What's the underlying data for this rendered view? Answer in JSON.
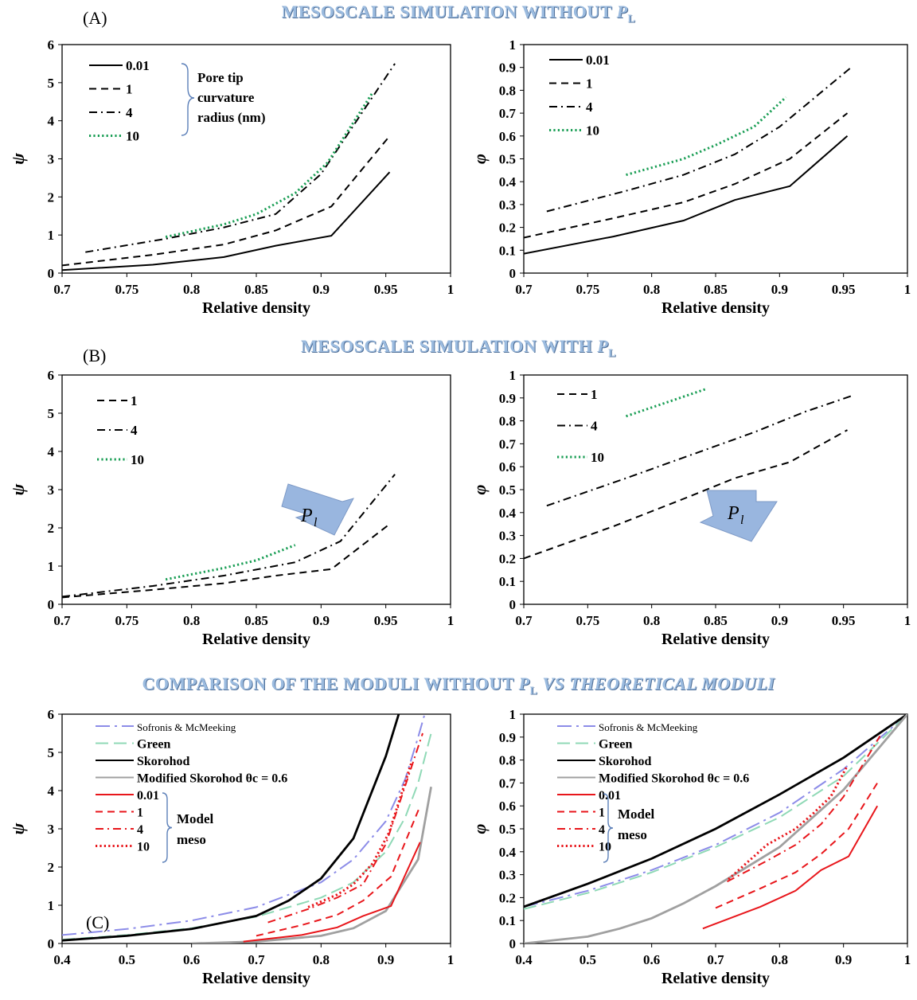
{
  "section_titles": {
    "a": {
      "main": "MESOSCALE  SIMULATION WITHOUT ",
      "p": "P",
      "sub": "L",
      "tail": ""
    },
    "b": {
      "main": "MESOSCALE  SIMULATION WITH ",
      "p": "P",
      "sub": "L",
      "tail": ""
    },
    "c": {
      "main": "COMPARISON OF THE MODULI WITHOUT ",
      "p": "P",
      "sub": "L",
      "tail": " VS THEORETICAL MODULI"
    }
  },
  "panel_labels": {
    "a": "(A)",
    "b": "(B)",
    "c": "(C)"
  },
  "colors": {
    "black": "#000000",
    "green": "#1a9e55",
    "red": "#e8161b",
    "purple": "#8c8ce8",
    "teal": "#8fd9b6",
    "gray": "#a0a0a0",
    "title": "#9bbbdf",
    "arrow": "#7f9fcf"
  },
  "chart_data": [
    {
      "type": "line",
      "panel": "A-left",
      "xlabel": "Relative density",
      "ylabel": "ψ",
      "xlim": [
        0.7,
        1
      ],
      "ylim": [
        0,
        6
      ],
      "xticks": [
        "0.7",
        "0.75",
        "0.8",
        "0.85",
        "0.9",
        "0.95",
        "1"
      ],
      "yticks": [
        "0",
        "1",
        "2",
        "3",
        "4",
        "5",
        "6"
      ],
      "legend_bracket": [
        "Pore tip",
        "curvature",
        "radius (nm)"
      ],
      "series": [
        {
          "name": "0.01",
          "style": "solid",
          "color": "#000000",
          "x": [
            0.7,
            0.77,
            0.825,
            0.865,
            0.908,
            0.953
          ],
          "y": [
            0.08,
            0.22,
            0.42,
            0.72,
            0.98,
            2.65
          ]
        },
        {
          "name": "1",
          "style": "dash",
          "color": "#000000",
          "x": [
            0.7,
            0.77,
            0.825,
            0.865,
            0.908,
            0.953
          ],
          "y": [
            0.2,
            0.48,
            0.75,
            1.12,
            1.75,
            3.6
          ]
        },
        {
          "name": "4",
          "style": "dashdot",
          "color": "#000000",
          "x": [
            0.718,
            0.78,
            0.825,
            0.865,
            0.9,
            0.957
          ],
          "y": [
            0.55,
            0.9,
            1.2,
            1.55,
            2.6,
            5.5
          ]
        },
        {
          "name": "10",
          "style": "dot",
          "color": "#1a9e55",
          "x": [
            0.78,
            0.825,
            0.85,
            0.88,
            0.905,
            0.94
          ],
          "y": [
            0.95,
            1.28,
            1.55,
            2.1,
            2.9,
            4.75
          ]
        }
      ]
    },
    {
      "type": "line",
      "panel": "A-right",
      "xlabel": "Relative density",
      "ylabel": "φ",
      "xlim": [
        0.7,
        1
      ],
      "ylim": [
        0,
        1
      ],
      "xticks": [
        "0.7",
        "0.75",
        "0.8",
        "0.85",
        "0.9",
        "0.95",
        "1"
      ],
      "yticks": [
        "0",
        "0.1",
        "0.2",
        "0.3",
        "0.4",
        "0.5",
        "0.6",
        "0.7",
        "0.8",
        "0.9",
        "1"
      ],
      "series": [
        {
          "name": "0.01",
          "style": "solid",
          "color": "#000000",
          "x": [
            0.7,
            0.77,
            0.825,
            0.865,
            0.908,
            0.953
          ],
          "y": [
            0.085,
            0.16,
            0.23,
            0.32,
            0.38,
            0.6
          ]
        },
        {
          "name": "1",
          "style": "dash",
          "color": "#000000",
          "x": [
            0.7,
            0.77,
            0.825,
            0.865,
            0.908,
            0.953
          ],
          "y": [
            0.155,
            0.24,
            0.31,
            0.39,
            0.5,
            0.7
          ]
        },
        {
          "name": "4",
          "style": "dashdot",
          "color": "#000000",
          "x": [
            0.718,
            0.78,
            0.825,
            0.865,
            0.9,
            0.957
          ],
          "y": [
            0.27,
            0.36,
            0.43,
            0.52,
            0.64,
            0.905
          ]
        },
        {
          "name": "10",
          "style": "dot",
          "color": "#1a9e55",
          "x": [
            0.78,
            0.825,
            0.85,
            0.88,
            0.905
          ],
          "y": [
            0.43,
            0.5,
            0.56,
            0.64,
            0.77
          ]
        }
      ]
    },
    {
      "type": "line",
      "panel": "B-left",
      "xlabel": "Relative density",
      "ylabel": "ψ",
      "xlim": [
        0.7,
        1
      ],
      "ylim": [
        0,
        6
      ],
      "xticks": [
        "0.7",
        "0.75",
        "0.8",
        "0.85",
        "0.9",
        "0.95",
        "1"
      ],
      "yticks": [
        "0",
        "1",
        "2",
        "3",
        "4",
        "5",
        "6"
      ],
      "arrow_label": "P",
      "arrow_sub": "l",
      "series": [
        {
          "name": "1",
          "style": "dash",
          "color": "#000000",
          "x": [
            0.7,
            0.77,
            0.825,
            0.865,
            0.908,
            0.953
          ],
          "y": [
            0.18,
            0.38,
            0.55,
            0.75,
            0.92,
            2.1
          ]
        },
        {
          "name": "4",
          "style": "dashdot",
          "color": "#000000",
          "x": [
            0.7,
            0.77,
            0.825,
            0.88,
            0.915,
            0.957
          ],
          "y": [
            0.2,
            0.48,
            0.75,
            1.1,
            1.65,
            3.4
          ]
        },
        {
          "name": "10",
          "style": "dot",
          "color": "#1a9e55",
          "x": [
            0.78,
            0.825,
            0.85,
            0.88
          ],
          "y": [
            0.65,
            0.95,
            1.15,
            1.55
          ]
        }
      ]
    },
    {
      "type": "line",
      "panel": "B-right",
      "xlabel": "Relative density",
      "ylabel": "φ",
      "xlim": [
        0.7,
        1
      ],
      "ylim": [
        0,
        1
      ],
      "xticks": [
        "0.7",
        "0.75",
        "0.8",
        "0.85",
        "0.9",
        "0.95",
        "1"
      ],
      "yticks": [
        "0",
        "0.1",
        "0.2",
        "0.3",
        "0.4",
        "0.5",
        "0.6",
        "0.7",
        "0.8",
        "0.9",
        "1"
      ],
      "arrow_label": "P",
      "arrow_sub": "l",
      "series": [
        {
          "name": "1",
          "style": "dash",
          "color": "#000000",
          "x": [
            0.7,
            0.77,
            0.825,
            0.865,
            0.908,
            0.953
          ],
          "y": [
            0.2,
            0.34,
            0.46,
            0.55,
            0.62,
            0.76
          ]
        },
        {
          "name": "4",
          "style": "dashdot",
          "color": "#000000",
          "x": [
            0.718,
            0.78,
            0.825,
            0.88,
            0.92,
            0.957
          ],
          "y": [
            0.43,
            0.55,
            0.64,
            0.75,
            0.84,
            0.91
          ]
        },
        {
          "name": "10",
          "style": "dot",
          "color": "#1a9e55",
          "x": [
            0.78,
            0.843
          ],
          "y": [
            0.82,
            0.94
          ]
        }
      ]
    },
    {
      "type": "line",
      "panel": "C-left",
      "xlabel": "Relative density",
      "ylabel": "ψ",
      "xlim": [
        0.4,
        1
      ],
      "ylim": [
        0,
        6
      ],
      "xticks": [
        "0.4",
        "0.5",
        "0.6",
        "0.7",
        "0.8",
        "0.9",
        "1"
      ],
      "yticks": [
        "0",
        "1",
        "2",
        "3",
        "4",
        "5",
        "6"
      ],
      "legend_bracket": [
        "Model",
        "meso"
      ],
      "series": [
        {
          "name": "Sofronis & McMeeking",
          "style": "longdashdot",
          "color": "#8c8ce8",
          "x": [
            0.4,
            0.5,
            0.6,
            0.7,
            0.8,
            0.85,
            0.9,
            0.93,
            0.95,
            0.96
          ],
          "y": [
            0.22,
            0.38,
            0.6,
            0.95,
            1.6,
            2.2,
            3.2,
            4.3,
            5.4,
            6.0
          ]
        },
        {
          "name": "Green",
          "style": "longdash",
          "color": "#8fd9b6",
          "x": [
            0.4,
            0.5,
            0.6,
            0.7,
            0.8,
            0.85,
            0.9,
            0.93,
            0.95,
            0.97
          ],
          "y": [
            0.1,
            0.22,
            0.4,
            0.7,
            1.2,
            1.6,
            2.4,
            3.3,
            4.2,
            5.5
          ]
        },
        {
          "name": "Skorohod",
          "style": "solid",
          "color": "#000000",
          "x": [
            0.4,
            0.5,
            0.6,
            0.7,
            0.75,
            0.8,
            0.85,
            0.9,
            0.92
          ],
          "y": [
            0.08,
            0.2,
            0.38,
            0.72,
            1.12,
            1.7,
            2.75,
            4.9,
            6.0
          ]
        },
        {
          "name": "Modified Skorohod θc = 0.6",
          "style": "solid",
          "color": "#a0a0a0",
          "x": [
            0.6,
            0.7,
            0.8,
            0.85,
            0.9,
            0.95,
            0.97
          ],
          "y": [
            0.0,
            0.05,
            0.2,
            0.4,
            0.85,
            2.2,
            4.1
          ]
        },
        {
          "name": "0.01",
          "style": "solid",
          "color": "#e8161b",
          "x": [
            0.68,
            0.77,
            0.825,
            0.865,
            0.908,
            0.953
          ],
          "y": [
            0.05,
            0.22,
            0.42,
            0.72,
            0.98,
            2.65
          ]
        },
        {
          "name": "1",
          "style": "dash",
          "color": "#e8161b",
          "x": [
            0.7,
            0.77,
            0.825,
            0.865,
            0.908,
            0.953
          ],
          "y": [
            0.2,
            0.48,
            0.75,
            1.12,
            1.75,
            3.6
          ]
        },
        {
          "name": "4",
          "style": "dashdot",
          "color": "#e8161b",
          "x": [
            0.718,
            0.78,
            0.825,
            0.865,
            0.9,
            0.957
          ],
          "y": [
            0.55,
            0.9,
            1.2,
            1.55,
            2.6,
            5.5
          ]
        },
        {
          "name": "10",
          "style": "dot",
          "color": "#e8161b",
          "x": [
            0.78,
            0.825,
            0.85,
            0.88,
            0.905,
            0.94
          ],
          "y": [
            0.95,
            1.28,
            1.55,
            2.1,
            2.9,
            4.75
          ]
        }
      ]
    },
    {
      "type": "line",
      "panel": "C-right",
      "xlabel": "Relative density",
      "ylabel": "φ",
      "xlim": [
        0.4,
        1
      ],
      "ylim": [
        0,
        1
      ],
      "xticks": [
        "0.4",
        "0.5",
        "0.6",
        "0.7",
        "0.8",
        "0.9",
        "1"
      ],
      "yticks": [
        "0",
        "0.1",
        "0.2",
        "0.3",
        "0.4",
        "0.5",
        "0.6",
        "0.7",
        "0.8",
        "0.9",
        "1"
      ],
      "legend_bracket": [
        "Model",
        "meso"
      ],
      "series": [
        {
          "name": "Sofronis & McMeeking",
          "style": "longdashdot",
          "color": "#8c8ce8",
          "x": [
            0.4,
            0.5,
            0.6,
            0.7,
            0.8,
            0.9,
            1.0
          ],
          "y": [
            0.16,
            0.23,
            0.32,
            0.43,
            0.57,
            0.76,
            1.0
          ]
        },
        {
          "name": "Green",
          "style": "longdash",
          "color": "#8fd9b6",
          "x": [
            0.4,
            0.5,
            0.6,
            0.7,
            0.8,
            0.9,
            1.0
          ],
          "y": [
            0.15,
            0.22,
            0.31,
            0.42,
            0.55,
            0.73,
            1.0
          ]
        },
        {
          "name": "Skorohod",
          "style": "solid",
          "color": "#000000",
          "x": [
            0.4,
            0.5,
            0.6,
            0.7,
            0.8,
            0.9,
            1.0
          ],
          "y": [
            0.16,
            0.26,
            0.37,
            0.5,
            0.65,
            0.81,
            1.0
          ]
        },
        {
          "name": "Modified Skorohod θc = 0.6",
          "style": "solid",
          "color": "#a0a0a0",
          "x": [
            0.4,
            0.5,
            0.55,
            0.6,
            0.65,
            0.7,
            0.8,
            0.9,
            1.0
          ],
          "y": [
            0.0,
            0.03,
            0.065,
            0.11,
            0.175,
            0.25,
            0.42,
            0.67,
            1.0
          ]
        },
        {
          "name": "0.01",
          "style": "solid",
          "color": "#e8161b",
          "x": [
            0.68,
            0.77,
            0.825,
            0.865,
            0.908,
            0.953
          ],
          "y": [
            0.065,
            0.16,
            0.23,
            0.32,
            0.38,
            0.6
          ]
        },
        {
          "name": "1",
          "style": "dash",
          "color": "#e8161b",
          "x": [
            0.7,
            0.77,
            0.825,
            0.865,
            0.908,
            0.953
          ],
          "y": [
            0.155,
            0.24,
            0.31,
            0.39,
            0.5,
            0.7
          ]
        },
        {
          "name": "4",
          "style": "dashdot",
          "color": "#e8161b",
          "x": [
            0.718,
            0.78,
            0.825,
            0.865,
            0.9,
            0.957
          ],
          "y": [
            0.27,
            0.36,
            0.43,
            0.52,
            0.64,
            0.905
          ]
        },
        {
          "name": "10",
          "style": "dot",
          "color": "#e8161b",
          "x": [
            0.72,
            0.78,
            0.825,
            0.85,
            0.88,
            0.905
          ],
          "y": [
            0.28,
            0.43,
            0.5,
            0.56,
            0.64,
            0.77
          ]
        }
      ]
    }
  ]
}
